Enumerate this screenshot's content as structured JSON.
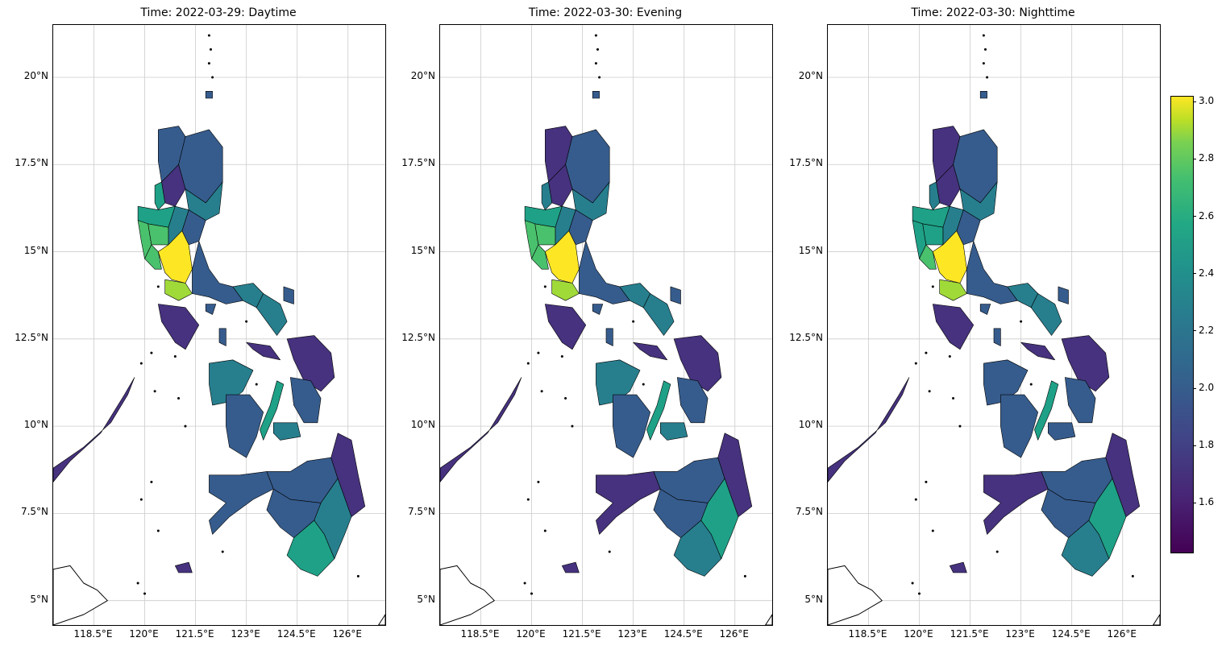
{
  "panels": [
    {
      "title": "Time: 2022-03-29: Daytime"
    },
    {
      "title": "Time: 2022-03-30: Evening"
    },
    {
      "title": "Time: 2022-03-30: Nighttime"
    }
  ],
  "axes": {
    "x_ticks": [
      "118.5°E",
      "120°E",
      "121.5°E",
      "123°E",
      "124.5°E",
      "126°E"
    ],
    "y_ticks": [
      "20°N",
      "17.5°N",
      "15°N",
      "12.5°N",
      "10°N",
      "7.5°N",
      "5°N"
    ],
    "lon_values": [
      118.5,
      120,
      121.5,
      123,
      124.5,
      126
    ],
    "lat_values": [
      20,
      17.5,
      15,
      12.5,
      10,
      7.5,
      5
    ],
    "lon_range": [
      117.3,
      127.1
    ],
    "lat_range": [
      4.3,
      21.5
    ],
    "grid": true
  },
  "colorbar": {
    "ticks": [
      "3.0",
      "2.8",
      "2.6",
      "2.4",
      "2.2",
      "2.0",
      "1.8",
      "1.6"
    ],
    "tick_values": [
      3.0,
      2.8,
      2.6,
      2.4,
      2.2,
      2.0,
      1.8,
      1.6
    ],
    "range": [
      1.43,
      3.02
    ],
    "colormap": "viridis"
  },
  "colors": {
    "yellow": "#fde725",
    "yellow_green": "#a0da39",
    "green": "#4ac16d",
    "teal_green": "#1fa187",
    "teal": "#277f8e",
    "blue": "#365c8d",
    "indigo": "#46327e",
    "dark_purple": "#440154"
  }
}
